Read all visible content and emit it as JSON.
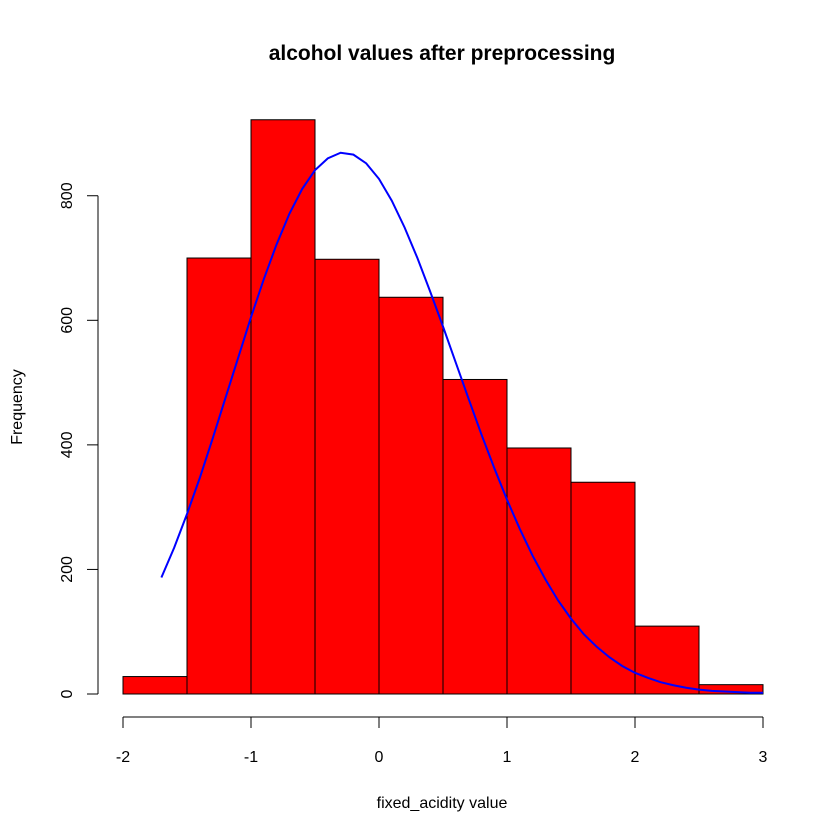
{
  "chart_data": {
    "type": "bar",
    "title": "alcohol values after preprocessing",
    "xlabel": "fixed_acidity value",
    "ylabel": "Frequency",
    "xlim": [
      -2,
      3
    ],
    "ylim": [
      0,
      920
    ],
    "x_ticks": [
      -2,
      -1,
      0,
      1,
      2,
      3
    ],
    "x_tick_labels": [
      "-2",
      "-1",
      "0",
      "1",
      "2",
      "3"
    ],
    "y_ticks": [
      0,
      200,
      400,
      600,
      800
    ],
    "y_tick_labels": [
      "0",
      "200",
      "400",
      "600",
      "800"
    ],
    "grid": false,
    "bins": [
      {
        "start": -2.0,
        "end": -1.5,
        "count": 28
      },
      {
        "start": -1.5,
        "end": -1.0,
        "count": 700
      },
      {
        "start": -1.0,
        "end": -0.5,
        "count": 922
      },
      {
        "start": -0.5,
        "end": 0.0,
        "count": 698
      },
      {
        "start": 0.0,
        "end": 0.5,
        "count": 637
      },
      {
        "start": 0.5,
        "end": 1.0,
        "count": 505
      },
      {
        "start": 1.0,
        "end": 1.5,
        "count": 395
      },
      {
        "start": 1.5,
        "end": 2.0,
        "count": 340
      },
      {
        "start": 2.0,
        "end": 2.5,
        "count": 109
      },
      {
        "start": 2.5,
        "end": 3.0,
        "count": 15
      }
    ],
    "curve": {
      "type": "line",
      "color": "#0000ff",
      "x": [
        -1.7,
        -1.6,
        -1.5,
        -1.4,
        -1.3,
        -1.2,
        -1.1,
        -1.0,
        -0.9,
        -0.8,
        -0.7,
        -0.6,
        -0.5,
        -0.4,
        -0.3,
        -0.2,
        -0.1,
        0.0,
        0.1,
        0.2,
        0.3,
        0.4,
        0.5,
        0.6,
        0.7,
        0.8,
        0.9,
        1.0,
        1.1,
        1.2,
        1.3,
        1.4,
        1.5,
        1.6,
        1.7,
        1.8,
        1.9,
        2.0,
        2.1,
        2.2,
        2.3,
        2.4,
        2.5,
        2.6,
        2.7,
        2.8,
        2.9,
        3.0
      ],
      "y": [
        187,
        235,
        289,
        347,
        410,
        475,
        540,
        605,
        666,
        722,
        771,
        811,
        841,
        860,
        869,
        866,
        852,
        827,
        792,
        749,
        700,
        646,
        590,
        532,
        474,
        417,
        363,
        312,
        265,
        222,
        184,
        150,
        121,
        96,
        76,
        59,
        45,
        34,
        26,
        19,
        14,
        10,
        7,
        5,
        4,
        3,
        2,
        2
      ]
    },
    "colors": {
      "bar_fill": "#ff0000",
      "bar_stroke": "#000000",
      "curve": "#0000ff"
    }
  }
}
